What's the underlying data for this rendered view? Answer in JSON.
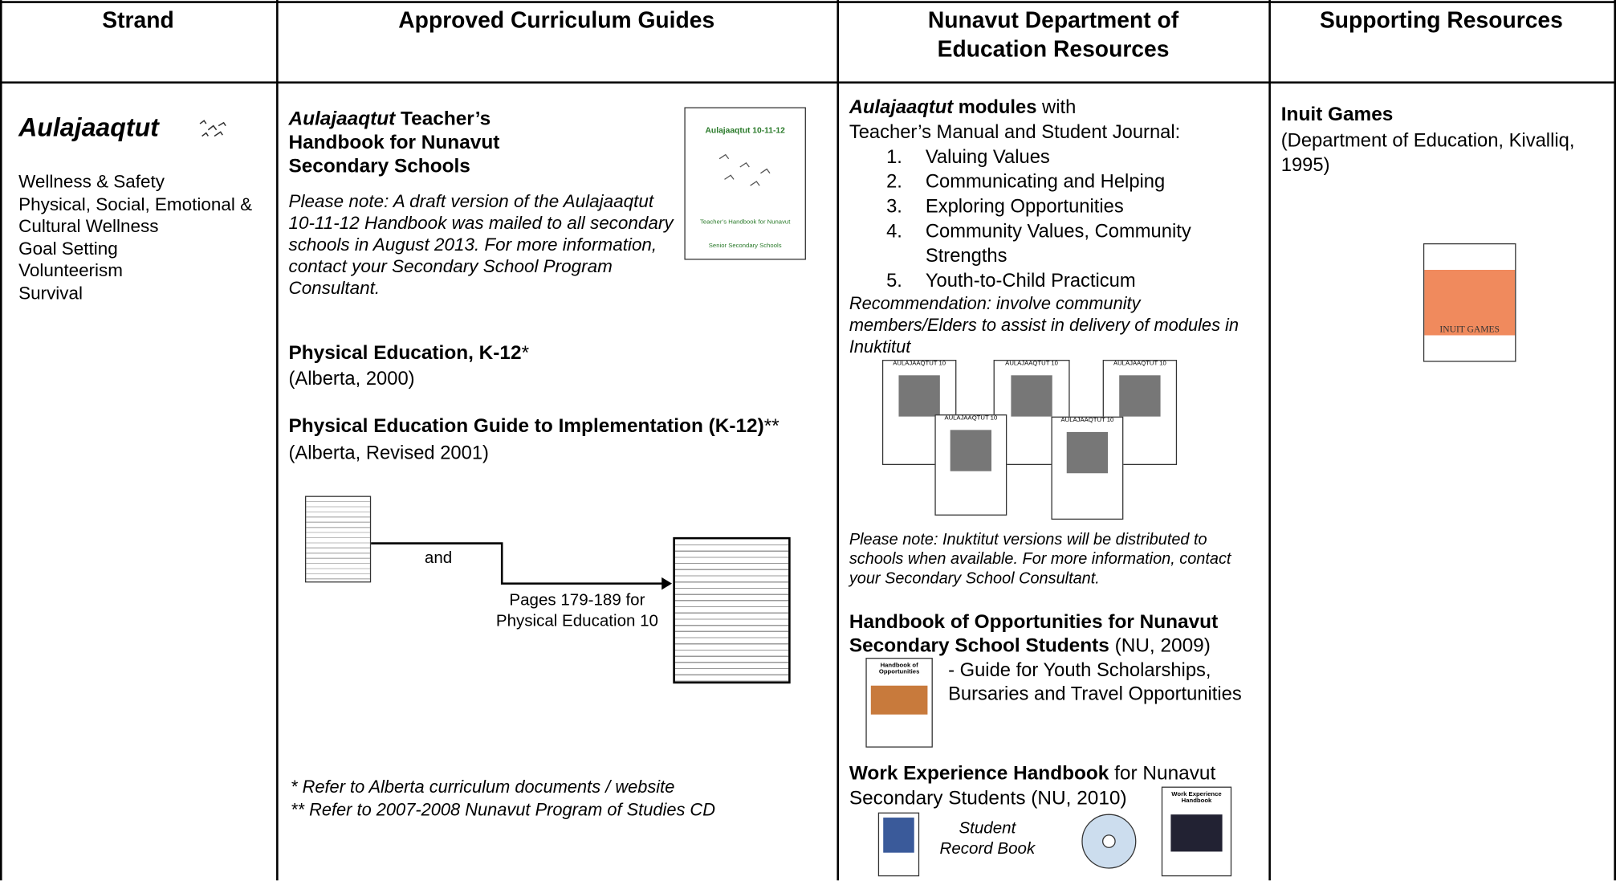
{
  "table": {
    "headers": [
      "Strand",
      "Approved Curriculum Guides",
      "Nunavut Department of Education Resources",
      "Supporting Resources"
    ],
    "strand": {
      "title": "Aulajaaqtut",
      "topics": [
        "Wellness & Safety",
        "Physical, Social, Emotional & Cultural Wellness",
        "Goal Setting",
        "Volunteerism",
        "Survival"
      ]
    },
    "curriculum": {
      "handbook": {
        "title_italic": "Aulajaaqtut",
        "title_rest": " Teacher’s Handbook for Nunavut Secondary Schools",
        "cover_title": "Aulajaaqtut 10-11-12",
        "cover_subtitle": "Teacher’s Handbook for Nunavut Senior Secondary Schools",
        "note": "Please note: A draft version of the Aulajaaqtut 10-11-12 Handbook was mailed to all secondary schools in August 2013. For more information, contact your Secondary School Program Consultant."
      },
      "pe": {
        "title": "Physical Education, K-12",
        "mark": "*",
        "source": "(Alberta, 2000)"
      },
      "pe_guide": {
        "title": "Physical Education Guide to Implementation (K-12)",
        "mark": "**",
        "source": "(Alberta, Revised 2001)"
      },
      "diagram": {
        "and": "and",
        "pages": "Pages 179-189 for",
        "course": "Physical Education 10"
      },
      "footnotes": [
        "*  Refer to Alberta curriculum documents / website",
        "** Refer to 2007-2008 Nunavut Program of Studies CD"
      ]
    },
    "resources": {
      "modules": {
        "title_italic": "Aulajaaqtut",
        "title_bold": " modules",
        "title_rest": " with",
        "subtitle": "Teacher’s Manual and Student Journal:",
        "items": [
          {
            "num": "1.",
            "text": "Valuing Values"
          },
          {
            "num": "2.",
            "text": "Communicating and Helping"
          },
          {
            "num": "3.",
            "text": "Exploring Opportunities"
          },
          {
            "num": "4.",
            "text": "Community Values, Community Strengths"
          },
          {
            "num": "5.",
            "text": "Youth-to-Child Practicum"
          }
        ],
        "recommendation": "Recommendation: involve community members/Elders to assist in delivery of modules in Inuktitut",
        "cover_title": "AULAJAAQTUT 10",
        "note": "Please note:  Inuktitut versions will be distributed to schools when available. For more information, contact your Secondary School Consultant."
      },
      "opportunities": {
        "title": "Handbook of Opportunities for Nunavut Secondary School Students",
        "source": " (NU, 2009)",
        "desc": "- Guide for Youth Scholarships, Bursaries and Travel Opportunities",
        "cover_title": "Handbook of Opportunities"
      },
      "work": {
        "title": "Work Experience Handbook",
        "rest": " for Nunavut Secondary Students (NU, 2010)",
        "record": "Student Record Book",
        "cover_title": "Work Experience Handbook"
      }
    },
    "supporting": {
      "title": "Inuit Games",
      "source": "(Department of Education, Kivalliq, 1995)",
      "cover_title": "INUIT GAMES"
    }
  }
}
